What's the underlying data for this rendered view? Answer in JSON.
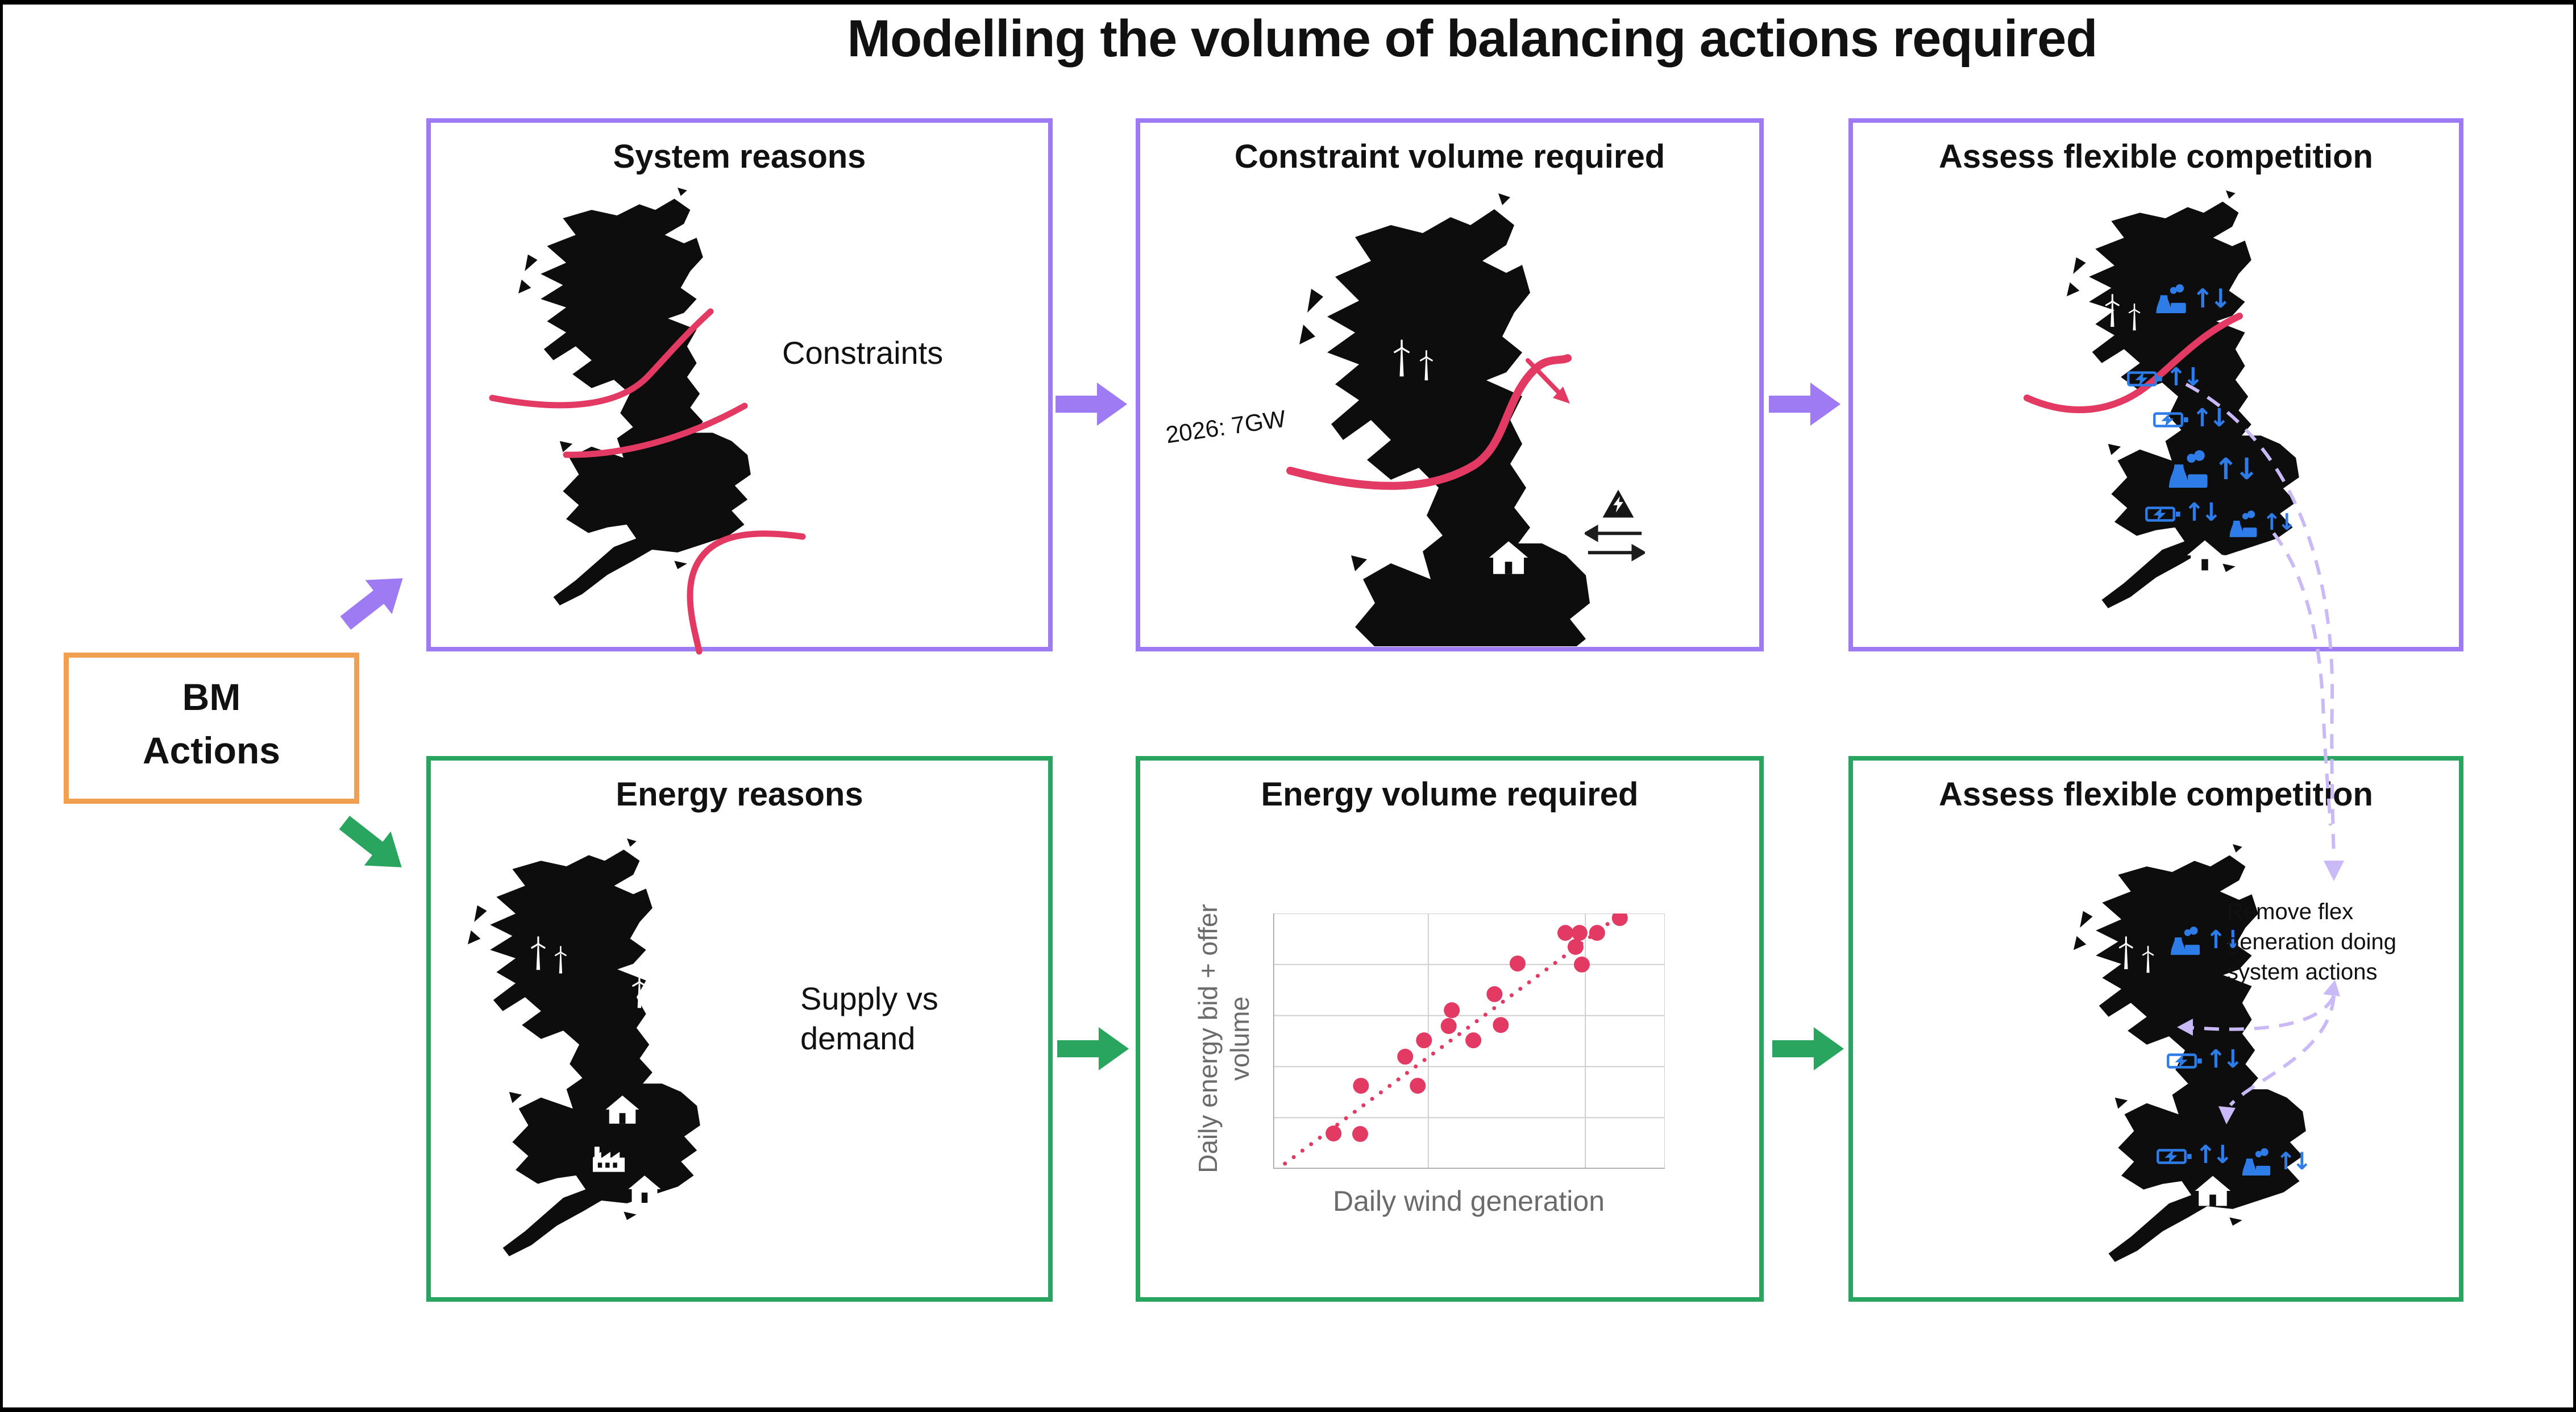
{
  "page_title": "Modelling the volume of balancing actions required",
  "bm": {
    "line1": "BM",
    "line2": "Actions"
  },
  "boxes": {
    "system": {
      "title": "System reasons",
      "label": "Constraints"
    },
    "constraint": {
      "title": "Constraint volume required",
      "flow_label": "2026: 7GW"
    },
    "flex_top": {
      "title": "Assess flexible competition"
    },
    "energy": {
      "title": "Energy reasons",
      "label": "Supply vs demand"
    },
    "volume": {
      "title": "Energy volume required"
    },
    "flex_bottom": {
      "title": "Assess flexible competition",
      "note": "Remove flex generation doing system actions"
    }
  },
  "glyphs": {
    "updown": "↑↓"
  },
  "colors": {
    "purple": "#9e7bf2",
    "green": "#2aa55f",
    "orange": "#f0a050",
    "pink": "#e23a63",
    "blue": "#2e7ce8",
    "lavender_dashed": "#c9b9f6",
    "map_black": "#0d0d0d"
  },
  "chart_data": {
    "type": "scatter",
    "title": "Energy volume required",
    "xlabel": "Daily wind generation",
    "ylabel": "Daily energy bid + offer volume",
    "x": [
      15.4,
      22.2,
      22.4,
      33.7,
      36.9,
      38.5,
      44.8,
      45.6,
      51.1,
      56.5,
      58.1,
      62.4,
      74.6,
      77.2,
      78.2,
      78.8,
      82.7,
      88.5
    ],
    "y": [
      13.8,
      13.6,
      32.5,
      43.9,
      32.5,
      50.3,
      55.9,
      62.1,
      50.3,
      68.4,
      56.3,
      80.4,
      92.4,
      86.9,
      92.4,
      80.0,
      92.4,
      98.2
    ],
    "xlim": [
      0,
      100
    ],
    "ylim": [
      0,
      100
    ],
    "tick_labels": "none (illustrative axes)",
    "grid": true,
    "legend": false,
    "point_color": "#e23a63",
    "trendline": {
      "style": "dotted",
      "x1": 3,
      "y1": 2,
      "x2": 89,
      "y2": 100
    }
  }
}
